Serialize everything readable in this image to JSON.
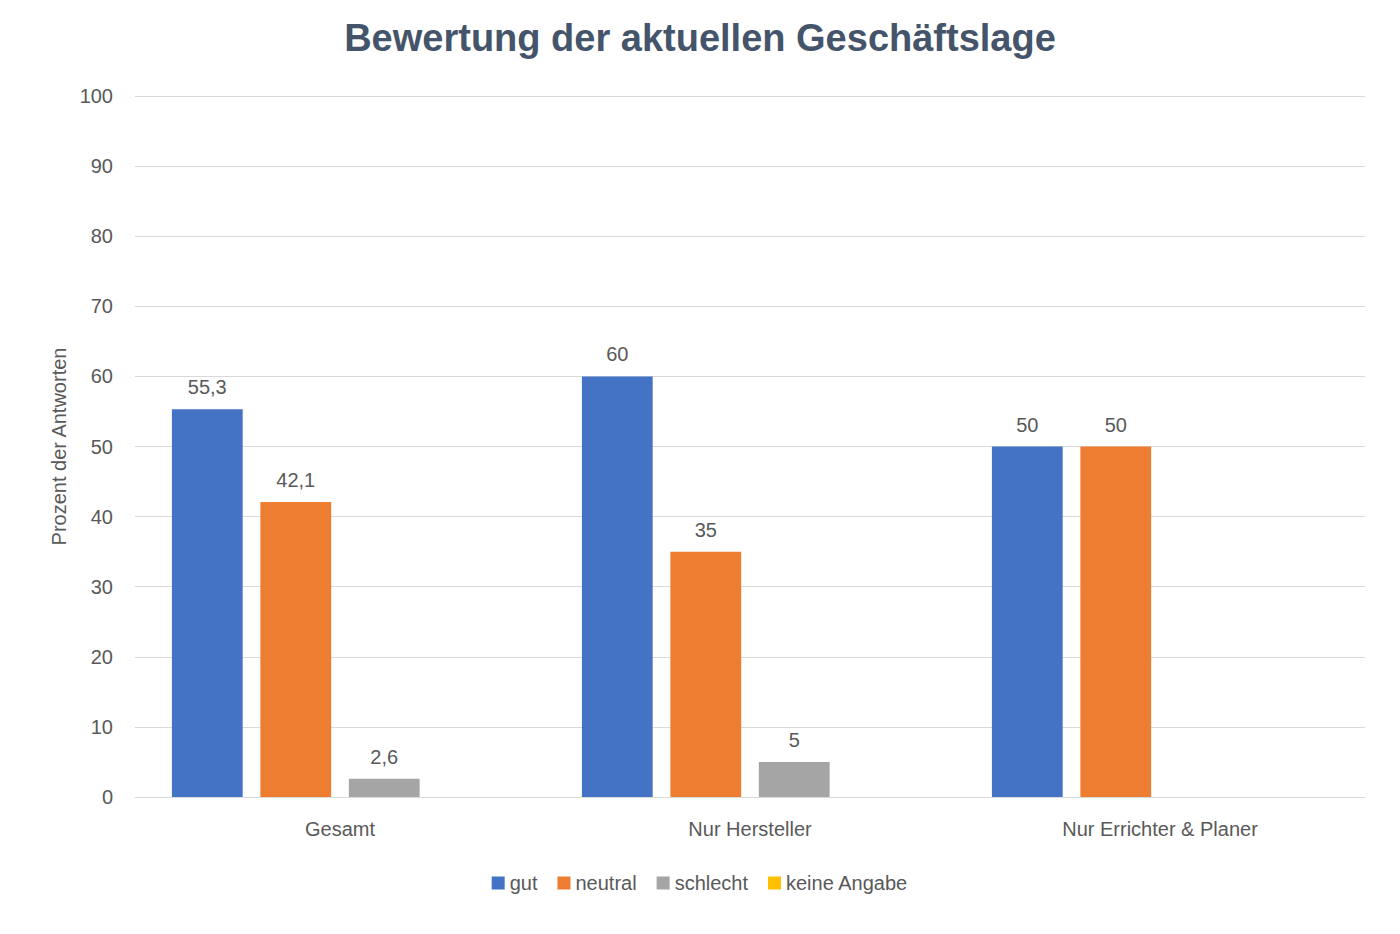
{
  "chart_data": {
    "type": "bar",
    "title": "Bewertung der aktuellen Geschäftslage",
    "y_label": "Prozent der Antworten",
    "categories": [
      "Gesamt",
      "Nur Hersteller",
      "Nur Errichter & Planer"
    ],
    "series": [
      {
        "name": "gut",
        "color": "#4472c4",
        "values": [
          55.3,
          60,
          50
        ],
        "value_labels": [
          "55,3",
          "60",
          "50"
        ]
      },
      {
        "name": "neutral",
        "color": "#ed7d31",
        "values": [
          42.1,
          35,
          50
        ],
        "value_labels": [
          "42,1",
          "35",
          "50"
        ]
      },
      {
        "name": "schlecht",
        "color": "#a5a5a5",
        "values": [
          2.6,
          5,
          null
        ],
        "value_labels": [
          "2,6",
          "5",
          null
        ]
      },
      {
        "name": "keine Angabe",
        "color": "#ffc000",
        "values": [
          null,
          null,
          null
        ],
        "value_labels": [
          null,
          null,
          null
        ]
      }
    ],
    "ylim": [
      0,
      100
    ],
    "yticks": [
      0,
      10,
      20,
      30,
      40,
      50,
      60,
      70,
      80,
      90,
      100
    ],
    "grid": true,
    "legend": "bottom",
    "data_labels": true
  }
}
